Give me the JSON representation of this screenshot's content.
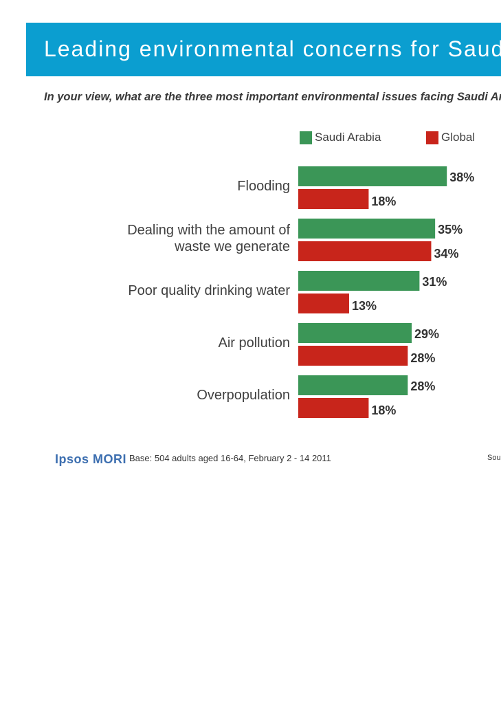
{
  "header": {
    "title": "Leading environmental concerns for Saudi Arabia",
    "question": "In your view, what are the three most important environmental issues facing Saudi Arabia today?"
  },
  "chart_data": {
    "type": "bar",
    "orientation": "horizontal",
    "title": "Leading environmental concerns for Saudi Arabia",
    "categories": [
      [
        "Flooding"
      ],
      [
        "Dealing with the amount of",
        "waste we generate"
      ],
      [
        "Poor quality drinking water"
      ],
      [
        "Air pollution"
      ],
      [
        "Overpopulation"
      ]
    ],
    "series": [
      {
        "name": "Saudi Arabia",
        "color": "#3b9657",
        "values": [
          38,
          35,
          31,
          29,
          28
        ],
        "labels": [
          "38%",
          "35%",
          "31%",
          "29%",
          "28%"
        ]
      },
      {
        "name": "Global",
        "color": "#c8251b",
        "values": [
          18,
          34,
          13,
          28,
          18
        ],
        "labels": [
          "18%",
          "34%",
          "13%",
          "28%",
          "18%"
        ]
      }
    ],
    "xlim": [
      0,
      50
    ],
    "unit": "%",
    "legend_position": "top",
    "grid": false
  },
  "footer": {
    "logo_text": "Ipsos MORI",
    "base_note": "Base: 504 adults aged 16-64, February 2 - 14 2011",
    "source_note": "Source: Ipsos"
  }
}
